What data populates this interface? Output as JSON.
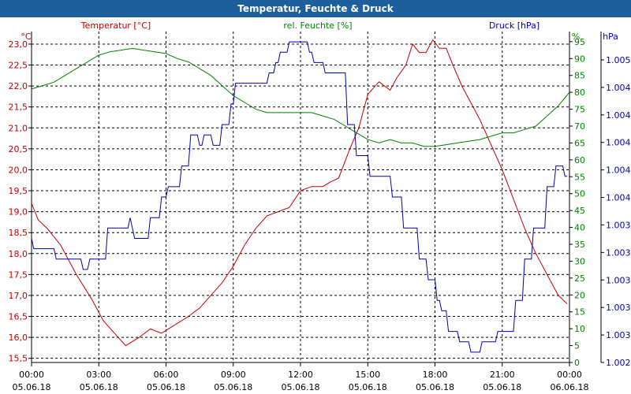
{
  "window": {
    "title": "Temperatur, Feuchte & Druck"
  },
  "chart_data": {
    "type": "line",
    "title": "Temperatur, Feuchte & Druck",
    "colors": {
      "temperature": "#c00000",
      "humidity": "#008000",
      "pressure": "#0000b0",
      "grid": "#000000"
    },
    "x_axis": {
      "range_hours": [
        0,
        24
      ],
      "tick_times": [
        "00:00",
        "03:00",
        "06:00",
        "09:00",
        "12:00",
        "15:00",
        "18:00",
        "21:00",
        "00:00"
      ],
      "tick_dates": [
        "05.06.18",
        "05.06.18",
        "05.06.18",
        "05.06.18",
        "05.06.18",
        "05.06.18",
        "05.06.18",
        "05.06.18",
        "06.06.18"
      ]
    },
    "axes": {
      "temperature": {
        "label": "Temperatur [°C]",
        "unit": "°C",
        "ylim": [
          15.4,
          23.3
        ],
        "ticks": [
          "23,0",
          "22,5",
          "22,0",
          "21,5",
          "21,0",
          "20,5",
          "20,0",
          "19,5",
          "19,0",
          "18,5",
          "18,0",
          "17,5",
          "17,0",
          "16,5",
          "16,0",
          "15,5"
        ]
      },
      "humidity": {
        "label": "rel. Feuchte [%]",
        "unit": "%",
        "ylim": [
          0,
          98
        ],
        "ticks": [
          "95",
          "90",
          "85",
          "80",
          "75",
          "70",
          "65",
          "60",
          "55",
          "50",
          "45",
          "40",
          "35",
          "30",
          "25",
          "20",
          "15",
          "10",
          "5",
          "0"
        ]
      },
      "pressure": {
        "label": "Druck [hPa]",
        "unit": "hPa",
        "ylim": [
          1002,
          1005.2
        ],
        "ticks": [
          "1.005",
          "1.004",
          "1.004",
          "1.004",
          "1.004",
          "1.004",
          "1.003",
          "1.003",
          "1.003",
          "1.003",
          "1.003",
          "1.002"
        ]
      }
    },
    "series": [
      {
        "name": "Temperatur",
        "axis": "temperature",
        "color": "#c00000",
        "x": [
          0,
          0.3,
          0.7,
          1.3,
          2.0,
          2.7,
          3.2,
          3.7,
          4.2,
          4.8,
          5.3,
          5.8,
          6.4,
          7.0,
          7.5,
          8.0,
          8.5,
          9.0,
          9.5,
          10.0,
          10.5,
          11.0,
          11.5,
          12.0,
          12.5,
          13.0,
          13.3,
          13.7,
          14.2,
          14.6,
          15.0,
          15.5,
          16.0,
          16.3,
          16.7,
          17.0,
          17.3,
          17.6,
          17.9,
          18.2,
          18.5,
          18.8,
          19.2,
          19.6,
          20.0,
          20.5,
          21.0,
          21.5,
          22.0,
          22.5,
          23.0,
          23.5,
          23.9
        ],
        "y": [
          19.2,
          18.8,
          18.6,
          18.2,
          17.5,
          16.9,
          16.4,
          16.1,
          15.8,
          16.0,
          16.2,
          16.1,
          16.3,
          16.5,
          16.7,
          17.0,
          17.3,
          17.7,
          18.2,
          18.6,
          18.9,
          19.0,
          19.1,
          19.5,
          19.6,
          19.6,
          19.7,
          19.8,
          20.5,
          21.0,
          21.8,
          22.1,
          21.9,
          22.2,
          22.5,
          23.0,
          22.8,
          22.8,
          23.1,
          22.9,
          22.9,
          22.5,
          22.0,
          21.6,
          21.2,
          20.6,
          20.0,
          19.3,
          18.6,
          18.0,
          17.5,
          17.0,
          16.8
        ]
      },
      {
        "name": "rel. Feuchte",
        "axis": "humidity",
        "color": "#008000",
        "x": [
          0,
          0.5,
          1.0,
          1.5,
          2.0,
          2.5,
          3.0,
          3.5,
          4.0,
          4.5,
          5.0,
          5.5,
          6.0,
          6.5,
          7.0,
          7.5,
          8.0,
          8.5,
          9.0,
          9.5,
          10.0,
          10.5,
          11.0,
          11.5,
          12.0,
          12.5,
          13.0,
          13.5,
          14.0,
          14.5,
          15.0,
          15.5,
          16.0,
          16.5,
          17.0,
          17.5,
          18.0,
          18.5,
          19.0,
          19.5,
          20.0,
          20.5,
          21.0,
          21.5,
          22.0,
          22.5,
          23.0,
          23.5,
          24.0
        ],
        "y": [
          81,
          82,
          83,
          85,
          87,
          89,
          91,
          92,
          92.5,
          93,
          92.5,
          92,
          91.5,
          90,
          89,
          87,
          85,
          82,
          79,
          77,
          75,
          74,
          74,
          74,
          74,
          74,
          73,
          72,
          70,
          68,
          66,
          65,
          66,
          65,
          65,
          64,
          64,
          64.5,
          65,
          65.5,
          66,
          67,
          68,
          68,
          69,
          70,
          73,
          76,
          80
        ]
      },
      {
        "name": "Druck",
        "axis": "pressure",
        "color": "#0000b0",
        "x": [
          0,
          0.1,
          1.0,
          1.1,
          2.2,
          2.3,
          2.5,
          2.6,
          3.3,
          3.4,
          4.3,
          4.4,
          4.6,
          4.7,
          5.2,
          5.3,
          5.7,
          5.8,
          6.0,
          6.1,
          6.6,
          6.7,
          7.0,
          7.1,
          7.4,
          7.5,
          7.6,
          7.7,
          8.0,
          8.1,
          8.4,
          8.5,
          8.8,
          8.9,
          9.0,
          9.1,
          10.5,
          10.6,
          10.8,
          10.9,
          11.0,
          11.1,
          11.4,
          11.5,
          12.3,
          12.4,
          12.5,
          12.6,
          13.0,
          13.1,
          14.0,
          14.1,
          14.4,
          14.5,
          15.0,
          15.1,
          16.0,
          16.1,
          16.5,
          16.6,
          17.2,
          17.3,
          17.6,
          17.7,
          18.0,
          18.1,
          18.2,
          18.3,
          18.5,
          18.6,
          19.0,
          19.1,
          19.5,
          19.6,
          20.0,
          20.1,
          20.7,
          20.8,
          21.5,
          21.6,
          21.9,
          22.0,
          22.3,
          22.4,
          22.9,
          23.0,
          23.3,
          23.4,
          23.7,
          23.8,
          23.9
        ],
        "y": [
          1003.2,
          1003.1,
          1003.1,
          1003.0,
          1003.0,
          1002.9,
          1002.9,
          1003.0,
          1003.0,
          1003.3,
          1003.3,
          1003.4,
          1003.2,
          1003.2,
          1003.2,
          1003.4,
          1003.4,
          1003.6,
          1003.6,
          1003.7,
          1003.7,
          1003.9,
          1003.9,
          1004.2,
          1004.2,
          1004.1,
          1004.1,
          1004.2,
          1004.2,
          1004.1,
          1004.1,
          1004.3,
          1004.3,
          1004.5,
          1004.5,
          1004.7,
          1004.7,
          1004.8,
          1004.8,
          1004.9,
          1004.9,
          1005.0,
          1005.0,
          1005.1,
          1005.1,
          1005.0,
          1005.0,
          1004.9,
          1004.9,
          1004.8,
          1004.8,
          1004.3,
          1004.3,
          1004.0,
          1004.0,
          1003.8,
          1003.8,
          1003.6,
          1003.6,
          1003.3,
          1003.3,
          1003.0,
          1003.0,
          1002.8,
          1002.8,
          1002.6,
          1002.6,
          1002.5,
          1002.5,
          1002.3,
          1002.3,
          1002.2,
          1002.2,
          1002.1,
          1002.1,
          1002.2,
          1002.2,
          1002.3,
          1002.3,
          1002.6,
          1002.6,
          1003.0,
          1003.0,
          1003.3,
          1003.3,
          1003.7,
          1003.7,
          1003.9,
          1003.9,
          1003.8,
          1003.8
        ]
      }
    ]
  }
}
